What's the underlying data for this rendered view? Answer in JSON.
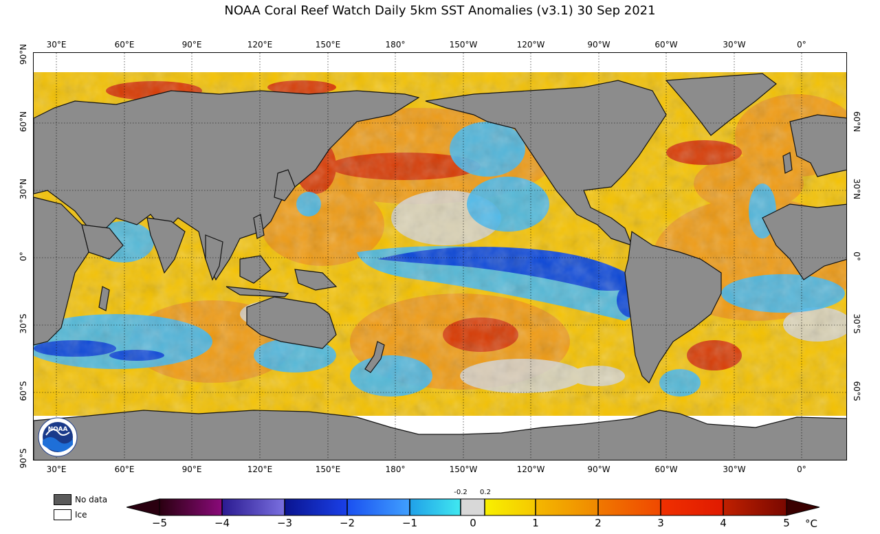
{
  "title": "NOAA Coral Reef Watch Daily 5km SST Anomalies  (v3.1)   30 Sep 2021",
  "map": {
    "longitude_labels": [
      "30°E",
      "60°E",
      "90°E",
      "120°E",
      "150°E",
      "180°",
      "150°W",
      "120°W",
      "90°W",
      "60°W",
      "30°W",
      "0°"
    ],
    "latitude_labels_left": [
      "90°N",
      "60°N",
      "30°N",
      "0°",
      "30°S",
      "60°S",
      "90°S"
    ],
    "latitude_labels_right": [
      "60°N",
      "30°N",
      "0°",
      "30°S",
      "60°S"
    ],
    "colors": {
      "land": "#8c8c8c",
      "ice": "#ffffff",
      "warm_strong": "#c81e00",
      "warm": "#f08c00",
      "mild_warm": "#f7d000",
      "neutral": "#d8d8d8",
      "cool": "#3fb8f0",
      "cold": "#0a4ad8"
    }
  },
  "legend": {
    "no_data_label": "No data",
    "ice_label": "Ice",
    "no_data_color": "#5a5a5a",
    "ice_color": "#ffffff"
  },
  "colorbar": {
    "ticks": [
      "−5",
      "−4",
      "−3",
      "−2",
      "−1",
      "0",
      "1",
      "2",
      "3",
      "4",
      "5"
    ],
    "neutral_labels": [
      "-0.2",
      "0.2"
    ],
    "unit": "°C",
    "segments": [
      "#2a0010",
      "#7a0a6a",
      "#4a35c0",
      "#0c20a8",
      "#1c68f0",
      "#3fc8f0",
      "#d8d8d8",
      "#f7e000",
      "#f2b000",
      "#f07a00",
      "#e82a00",
      "#a01000",
      "#3a0000"
    ]
  },
  "logo": {
    "text": "NOAA"
  }
}
